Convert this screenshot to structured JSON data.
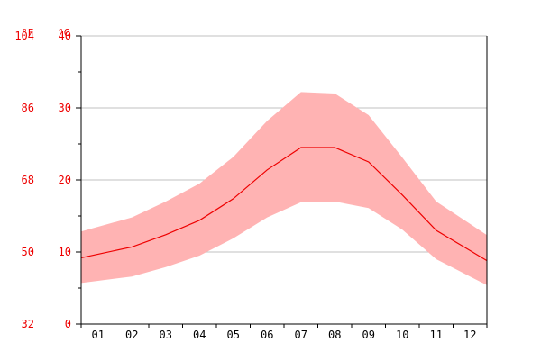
{
  "chart_data": {
    "type": "area",
    "units": {
      "fahrenheit": "°F",
      "celsius": "°C"
    },
    "categories": [
      "01",
      "02",
      "03",
      "04",
      "05",
      "06",
      "07",
      "08",
      "09",
      "10",
      "11",
      "12"
    ],
    "y_ticks_celsius": [
      "0",
      "10",
      "20",
      "30",
      "40"
    ],
    "y_ticks_fahrenheit": [
      "32",
      "50",
      "68",
      "86",
      "104"
    ],
    "ylim": [
      0,
      40
    ],
    "grid": true,
    "series": [
      {
        "key": "max",
        "values": [
          13.5,
          14.8,
          17.0,
          19.5,
          23.2,
          28.2,
          32.2,
          32.0,
          29.0,
          23.1,
          17.0,
          13.9
        ]
      },
      {
        "key": "mean",
        "values": [
          9.7,
          10.7,
          12.4,
          14.4,
          17.4,
          21.4,
          24.5,
          24.5,
          22.5,
          17.9,
          13.0,
          10.2
        ]
      },
      {
        "key": "min",
        "values": [
          6.0,
          6.6,
          7.9,
          9.5,
          11.9,
          14.8,
          16.9,
          17.0,
          16.1,
          13.1,
          9.0,
          6.6
        ]
      }
    ],
    "colors": {
      "band": "#ffb3b3",
      "line": "#ee0000",
      "axis_text": "#ee0000",
      "grid": "#c0c0c0",
      "axis": "#000000"
    }
  }
}
